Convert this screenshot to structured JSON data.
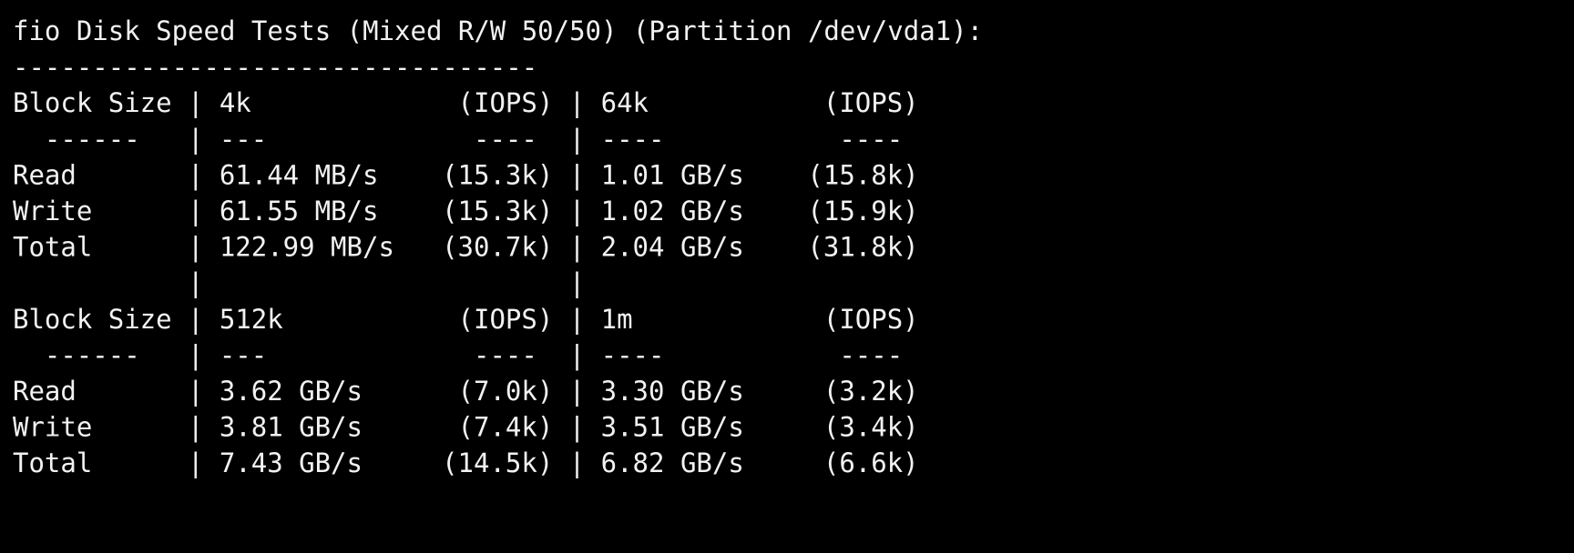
{
  "title": "fio Disk Speed Tests (Mixed R/W 50/50) (Partition /dev/vda1):",
  "rule": "---------------------------------",
  "separator": "|",
  "tables": [
    {
      "header": [
        "Block Size",
        "4k",
        "(IOPS)",
        "64k",
        "(IOPS)"
      ],
      "dashes": [
        "------",
        "---",
        "----",
        "----",
        "----"
      ],
      "rows": [
        [
          "Read",
          "61.44 MB/s",
          "(15.3k)",
          "1.01 GB/s",
          "(15.8k)"
        ],
        [
          "Write",
          "61.55 MB/s",
          "(15.3k)",
          "1.02 GB/s",
          "(15.9k)"
        ],
        [
          "Total",
          "122.99 MB/s",
          "(30.7k)",
          "2.04 GB/s",
          "(31.8k)"
        ]
      ]
    },
    {
      "header": [
        "Block Size",
        "512k",
        "(IOPS)",
        "1m",
        "(IOPS)"
      ],
      "dashes": [
        "------",
        "---",
        "----",
        "----",
        "----"
      ],
      "rows": [
        [
          "Read",
          "3.62 GB/s",
          "(7.0k)",
          "3.30 GB/s",
          "(3.2k)"
        ],
        [
          "Write",
          "3.81 GB/s",
          "(7.4k)",
          "3.51 GB/s",
          "(3.4k)"
        ],
        [
          "Total",
          "7.43 GB/s",
          "(14.5k)",
          "6.82 GB/s",
          "(6.6k)"
        ]
      ]
    }
  ]
}
